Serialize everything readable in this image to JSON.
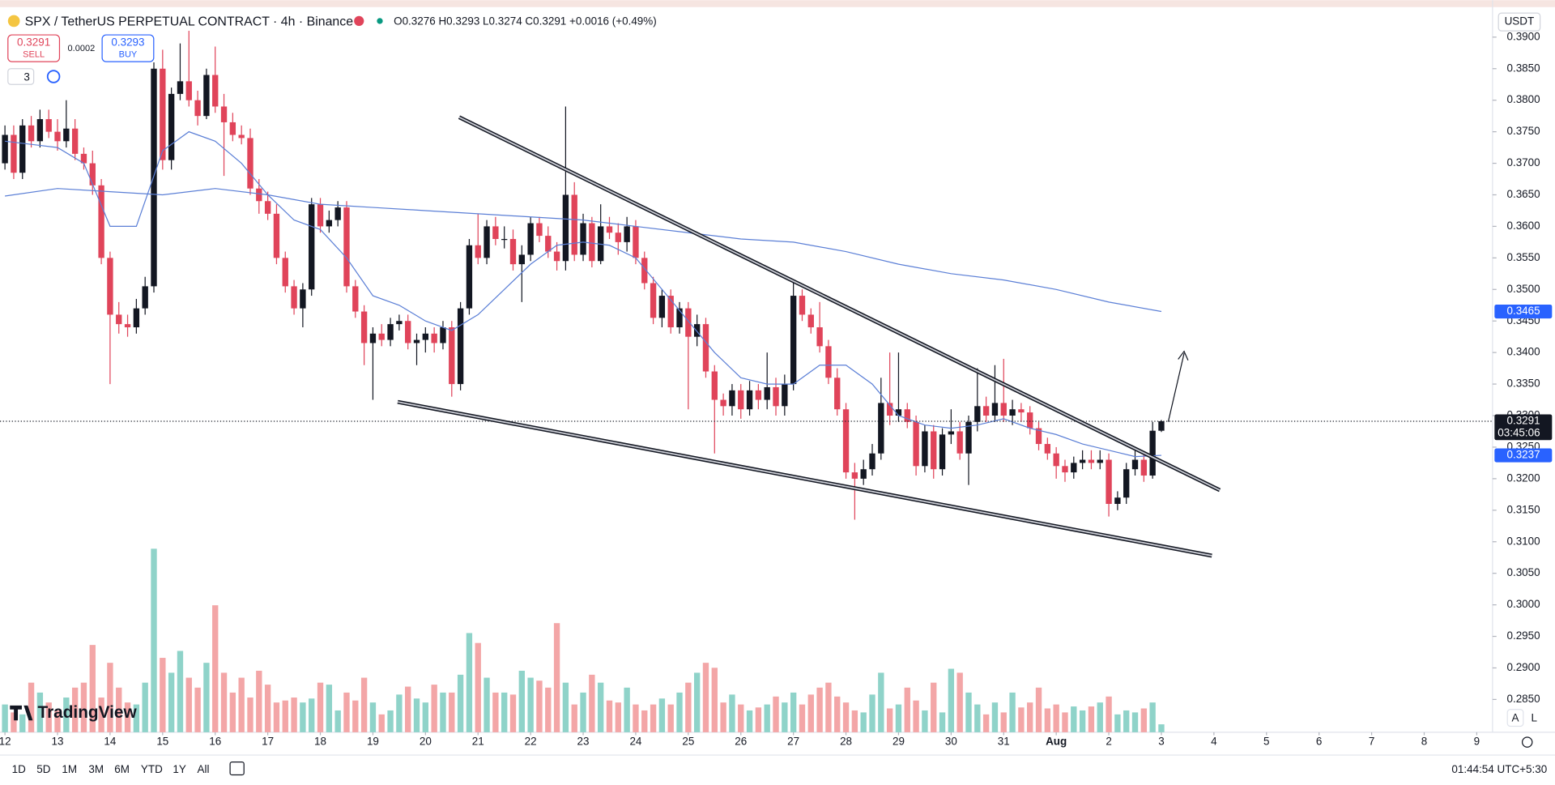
{
  "header": {
    "symbol": "SPX / TetherUS PERPETUAL CONTRACT · 4h · Binance",
    "ohlc": "O0.3276 H0.3293 L0.3274 C0.3291 +0.0016 (+0.49%)",
    "sell_price": "0.3291",
    "sell": "SELL",
    "spread": "0.0002",
    "buy_price": "0.3293",
    "buy": "BUY",
    "indicators": "3",
    "currency": "USDT"
  },
  "chart_data": {
    "type": "candlestick",
    "grid": false,
    "up_color": "#131722",
    "down_color": "#e0445a",
    "volume_up_color": "#8fd3c9",
    "volume_down_color": "#f3a6a7",
    "ma_color": "#5b7fd6",
    "xlim": [
      -2.26,
      679.2
    ],
    "ylim": [
      0.2798,
      0.3946
    ],
    "xticks": [
      {
        "value": 0,
        "label": "12"
      },
      {
        "value": 24,
        "label": "13"
      },
      {
        "value": 48,
        "label": "14"
      },
      {
        "value": 72,
        "label": "15"
      },
      {
        "value": 96,
        "label": "16"
      },
      {
        "value": 120,
        "label": "17"
      },
      {
        "value": 144,
        "label": "18"
      },
      {
        "value": 168,
        "label": "19"
      },
      {
        "value": 192,
        "label": "20"
      },
      {
        "value": 216,
        "label": "21"
      },
      {
        "value": 240,
        "label": "22"
      },
      {
        "value": 264,
        "label": "23"
      },
      {
        "value": 288,
        "label": "24"
      },
      {
        "value": 312,
        "label": "25"
      },
      {
        "value": 336,
        "label": "26"
      },
      {
        "value": 360,
        "label": "27"
      },
      {
        "value": 384,
        "label": "28"
      },
      {
        "value": 408,
        "label": "29"
      },
      {
        "value": 432,
        "label": "30"
      },
      {
        "value": 456,
        "label": "31"
      },
      {
        "value": 480,
        "label": "Aug"
      },
      {
        "value": 504,
        "label": "2"
      },
      {
        "value": 528,
        "label": "3"
      },
      {
        "value": 552,
        "label": "4"
      },
      {
        "value": 576,
        "label": "5"
      },
      {
        "value": 600,
        "label": "6"
      },
      {
        "value": 624,
        "label": "7"
      },
      {
        "value": 648,
        "label": "8"
      },
      {
        "value": 672,
        "label": "9"
      }
    ],
    "yticks": [
      {
        "value": 0.285,
        "label": "0.2850"
      },
      {
        "value": 0.29,
        "label": "0.2900"
      },
      {
        "value": 0.295,
        "label": "0.2950"
      },
      {
        "value": 0.3,
        "label": "0.3000"
      },
      {
        "value": 0.305,
        "label": "0.3050"
      },
      {
        "value": 0.31,
        "label": "0.3100"
      },
      {
        "value": 0.315,
        "label": "0.3150"
      },
      {
        "value": 0.32,
        "label": "0.3200"
      },
      {
        "value": 0.325,
        "label": "0.3250"
      },
      {
        "value": 0.33,
        "label": "0.3300"
      },
      {
        "value": 0.335,
        "label": "0.3350"
      },
      {
        "value": 0.34,
        "label": "0.3400"
      },
      {
        "value": 0.345,
        "label": "0.3450"
      },
      {
        "value": 0.35,
        "label": "0.3500"
      },
      {
        "value": 0.355,
        "label": "0.3550"
      },
      {
        "value": 0.36,
        "label": "0.3600"
      },
      {
        "value": 0.365,
        "label": "0.3650"
      },
      {
        "value": 0.37,
        "label": "0.3700"
      },
      {
        "value": 0.375,
        "label": "0.3750"
      },
      {
        "value": 0.38,
        "label": "0.3800"
      },
      {
        "value": 0.385,
        "label": "0.3850"
      },
      {
        "value": 0.39,
        "label": "0.3900"
      }
    ],
    "candles": {
      "x": [
        0,
        4,
        8,
        12,
        16,
        20,
        24,
        28,
        32,
        36,
        40,
        44,
        48,
        52,
        56,
        60,
        64,
        68,
        72,
        76,
        80,
        84,
        88,
        92,
        96,
        100,
        104,
        108,
        112,
        116,
        120,
        124,
        128,
        132,
        136,
        140,
        144,
        148,
        152,
        156,
        160,
        164,
        168,
        172,
        176,
        180,
        184,
        188,
        192,
        196,
        200,
        204,
        208,
        212,
        216,
        220,
        224,
        228,
        232,
        236,
        240,
        244,
        248,
        252,
        256,
        260,
        264,
        268,
        272,
        276,
        280,
        284,
        288,
        292,
        296,
        300,
        304,
        308,
        312,
        316,
        320,
        324,
        328,
        332,
        336,
        340,
        344,
        348,
        352,
        356,
        360,
        364,
        368,
        372,
        376,
        380,
        384,
        388,
        392,
        396,
        400,
        404,
        408,
        412,
        416,
        420,
        424,
        428,
        432,
        436,
        440,
        444,
        448,
        452,
        456,
        460,
        464,
        468,
        472,
        476,
        480,
        484,
        488,
        492,
        496,
        500,
        504,
        508,
        512,
        516,
        520,
        524,
        528
      ],
      "open": [
        0.37,
        0.3745,
        0.3685,
        0.376,
        0.3735,
        0.377,
        0.375,
        0.3735,
        0.3755,
        0.3715,
        0.37,
        0.3665,
        0.355,
        0.346,
        0.3445,
        0.344,
        0.347,
        0.3505,
        0.385,
        0.3705,
        0.381,
        0.383,
        0.38,
        0.3775,
        0.384,
        0.379,
        0.3765,
        0.3745,
        0.374,
        0.366,
        0.364,
        0.362,
        0.355,
        0.3505,
        0.347,
        0.35,
        0.3635,
        0.36,
        0.361,
        0.363,
        0.3505,
        0.3465,
        0.3415,
        0.343,
        0.342,
        0.3445,
        0.345,
        0.3415,
        0.342,
        0.343,
        0.3415,
        0.344,
        0.335,
        0.347,
        0.357,
        0.355,
        0.36,
        0.358,
        0.358,
        0.354,
        0.3555,
        0.3605,
        0.3585,
        0.356,
        0.3545,
        0.365,
        0.3555,
        0.3605,
        0.3545,
        0.36,
        0.359,
        0.3575,
        0.36,
        0.355,
        0.351,
        0.3455,
        0.349,
        0.344,
        0.347,
        0.3425,
        0.3445,
        0.337,
        0.3325,
        0.3315,
        0.334,
        0.331,
        0.334,
        0.3325,
        0.3345,
        0.3315,
        0.335,
        0.349,
        0.346,
        0.344,
        0.341,
        0.336,
        0.331,
        0.321,
        0.32,
        0.3215,
        0.324,
        0.332,
        0.33,
        0.331,
        0.329,
        0.322,
        0.3275,
        0.3215,
        0.327,
        0.3275,
        0.324,
        0.329,
        0.3315,
        0.33,
        0.332,
        0.33,
        0.331,
        0.3305,
        0.328,
        0.3255,
        0.324,
        0.322,
        0.321,
        0.3225,
        0.323,
        0.3225,
        0.323,
        0.316,
        0.317,
        0.3215,
        0.323,
        0.3205,
        0.3276
      ],
      "high": [
        0.376,
        0.376,
        0.377,
        0.3775,
        0.3785,
        0.3785,
        0.377,
        0.38,
        0.377,
        0.3725,
        0.372,
        0.3675,
        0.356,
        0.348,
        0.346,
        0.3485,
        0.352,
        0.386,
        0.388,
        0.382,
        0.389,
        0.391,
        0.3815,
        0.385,
        0.3885,
        0.381,
        0.378,
        0.376,
        0.3755,
        0.3675,
        0.3655,
        0.3635,
        0.356,
        0.3515,
        0.351,
        0.3645,
        0.3645,
        0.3625,
        0.364,
        0.364,
        0.3515,
        0.3475,
        0.344,
        0.3445,
        0.3455,
        0.346,
        0.346,
        0.343,
        0.344,
        0.344,
        0.345,
        0.345,
        0.348,
        0.358,
        0.362,
        0.361,
        0.3615,
        0.36,
        0.3595,
        0.357,
        0.3615,
        0.3615,
        0.36,
        0.3575,
        0.379,
        0.367,
        0.362,
        0.3615,
        0.3635,
        0.3615,
        0.3605,
        0.3615,
        0.361,
        0.356,
        0.352,
        0.35,
        0.35,
        0.348,
        0.348,
        0.346,
        0.3455,
        0.338,
        0.3335,
        0.335,
        0.335,
        0.3355,
        0.335,
        0.34,
        0.336,
        0.3365,
        0.351,
        0.35,
        0.347,
        0.348,
        0.342,
        0.3375,
        0.332,
        0.3225,
        0.323,
        0.3255,
        0.336,
        0.34,
        0.34,
        0.332,
        0.33,
        0.3285,
        0.3285,
        0.328,
        0.331,
        0.329,
        0.33,
        0.3375,
        0.333,
        0.338,
        0.339,
        0.3325,
        0.332,
        0.3315,
        0.329,
        0.3265,
        0.325,
        0.323,
        0.3235,
        0.3245,
        0.3245,
        0.3245,
        0.324,
        0.318,
        0.3225,
        0.3245,
        0.324,
        0.329,
        0.3293
      ],
      "low": [
        0.369,
        0.3675,
        0.3675,
        0.3725,
        0.3725,
        0.374,
        0.372,
        0.3725,
        0.3705,
        0.369,
        0.365,
        0.354,
        0.335,
        0.343,
        0.3425,
        0.343,
        0.346,
        0.3495,
        0.369,
        0.369,
        0.38,
        0.379,
        0.376,
        0.377,
        0.378,
        0.368,
        0.3735,
        0.373,
        0.365,
        0.362,
        0.361,
        0.354,
        0.3495,
        0.346,
        0.344,
        0.349,
        0.359,
        0.359,
        0.36,
        0.3495,
        0.3455,
        0.338,
        0.3325,
        0.341,
        0.341,
        0.3435,
        0.3405,
        0.338,
        0.34,
        0.34,
        0.3405,
        0.333,
        0.334,
        0.346,
        0.354,
        0.354,
        0.357,
        0.3565,
        0.353,
        0.348,
        0.3545,
        0.3575,
        0.355,
        0.353,
        0.353,
        0.3545,
        0.3545,
        0.3535,
        0.354,
        0.358,
        0.3555,
        0.356,
        0.354,
        0.35,
        0.3445,
        0.344,
        0.343,
        0.343,
        0.331,
        0.341,
        0.336,
        0.324,
        0.33,
        0.33,
        0.3295,
        0.33,
        0.331,
        0.331,
        0.33,
        0.33,
        0.334,
        0.345,
        0.343,
        0.34,
        0.335,
        0.33,
        0.32,
        0.3135,
        0.319,
        0.3205,
        0.323,
        0.3285,
        0.329,
        0.328,
        0.3205,
        0.321,
        0.32,
        0.3205,
        0.3255,
        0.323,
        0.319,
        0.3275,
        0.329,
        0.329,
        0.329,
        0.3285,
        0.329,
        0.327,
        0.3245,
        0.323,
        0.32,
        0.3195,
        0.32,
        0.3215,
        0.3215,
        0.3215,
        0.314,
        0.315,
        0.316,
        0.3205,
        0.3195,
        0.32,
        0.3274
      ],
      "close": [
        0.3745,
        0.3685,
        0.376,
        0.3735,
        0.377,
        0.375,
        0.3735,
        0.3755,
        0.3715,
        0.37,
        0.3665,
        0.355,
        0.346,
        0.3445,
        0.344,
        0.347,
        0.3505,
        0.385,
        0.3705,
        0.381,
        0.383,
        0.38,
        0.3775,
        0.384,
        0.379,
        0.3765,
        0.3745,
        0.374,
        0.366,
        0.364,
        0.362,
        0.355,
        0.3505,
        0.347,
        0.35,
        0.3635,
        0.36,
        0.361,
        0.363,
        0.3505,
        0.3465,
        0.3415,
        0.343,
        0.342,
        0.3445,
        0.345,
        0.3415,
        0.342,
        0.343,
        0.3415,
        0.344,
        0.335,
        0.347,
        0.357,
        0.355,
        0.36,
        0.358,
        0.358,
        0.354,
        0.3555,
        0.3605,
        0.3585,
        0.356,
        0.3545,
        0.365,
        0.3555,
        0.3605,
        0.3545,
        0.36,
        0.359,
        0.3575,
        0.36,
        0.355,
        0.351,
        0.3455,
        0.349,
        0.344,
        0.347,
        0.3425,
        0.3445,
        0.337,
        0.3325,
        0.3315,
        0.334,
        0.331,
        0.334,
        0.3325,
        0.3345,
        0.3315,
        0.335,
        0.349,
        0.346,
        0.344,
        0.341,
        0.336,
        0.331,
        0.321,
        0.32,
        0.3215,
        0.324,
        0.332,
        0.33,
        0.331,
        0.329,
        0.322,
        0.3275,
        0.3215,
        0.327,
        0.3275,
        0.324,
        0.329,
        0.3315,
        0.33,
        0.332,
        0.33,
        0.331,
        0.3305,
        0.328,
        0.3255,
        0.324,
        0.322,
        0.321,
        0.3225,
        0.323,
        0.3225,
        0.323,
        0.316,
        0.317,
        0.3215,
        0.323,
        0.3205,
        0.3276,
        0.3291
      ],
      "volume": [
        28,
        20,
        18,
        50,
        40,
        30,
        22,
        35,
        45,
        50,
        88,
        35,
        70,
        45,
        30,
        28,
        50,
        185,
        75,
        60,
        82,
        55,
        45,
        70,
        128,
        60,
        40,
        55,
        35,
        62,
        48,
        30,
        32,
        35,
        30,
        34,
        50,
        48,
        22,
        40,
        32,
        55,
        30,
        18,
        22,
        38,
        46,
        34,
        30,
        48,
        40,
        40,
        58,
        100,
        90,
        55,
        40,
        40,
        38,
        62,
        55,
        52,
        45,
        110,
        50,
        28,
        40,
        58,
        50,
        32,
        30,
        45,
        28,
        22,
        28,
        34,
        28,
        40,
        50,
        60,
        70,
        65,
        30,
        38,
        28,
        22,
        25,
        28,
        36,
        30,
        40,
        28,
        38,
        45,
        50,
        36,
        30,
        22,
        20,
        38,
        60,
        24,
        28,
        45,
        32,
        22,
        50,
        20,
        64,
        60,
        40,
        28,
        18,
        30,
        20,
        40,
        25,
        30,
        45,
        24,
        28,
        20,
        26,
        22,
        26,
        30,
        36,
        18,
        22,
        20,
        24,
        30,
        8
      ]
    },
    "ma_short": {
      "x": [
        0,
        12,
        24,
        36,
        48,
        60,
        72,
        84,
        96,
        108,
        120,
        132,
        144,
        156,
        168,
        180,
        192,
        204,
        216,
        228,
        240,
        252,
        264,
        276,
        288,
        300,
        312,
        324,
        336,
        348,
        360,
        372,
        384,
        396,
        408,
        420,
        432,
        444,
        456,
        468,
        480,
        492,
        504,
        516,
        528
      ],
      "values": [
        0.3735,
        0.373,
        0.3725,
        0.37,
        0.36,
        0.36,
        0.372,
        0.375,
        0.3735,
        0.37,
        0.365,
        0.361,
        0.3595,
        0.355,
        0.349,
        0.3475,
        0.345,
        0.3435,
        0.346,
        0.35,
        0.354,
        0.357,
        0.3575,
        0.357,
        0.355,
        0.35,
        0.345,
        0.34,
        0.336,
        0.335,
        0.335,
        0.338,
        0.338,
        0.335,
        0.33,
        0.3285,
        0.328,
        0.3285,
        0.3295,
        0.328,
        0.327,
        0.3255,
        0.3245,
        0.3235,
        0.3237
      ]
    },
    "ma_long": {
      "x": [
        0,
        24,
        48,
        72,
        96,
        120,
        144,
        168,
        192,
        216,
        240,
        264,
        288,
        312,
        336,
        360,
        384,
        408,
        432,
        456,
        480,
        504,
        528
      ],
      "values": [
        0.3648,
        0.366,
        0.3655,
        0.365,
        0.366,
        0.365,
        0.3635,
        0.363,
        0.3625,
        0.362,
        0.3615,
        0.361,
        0.36,
        0.359,
        0.358,
        0.3575,
        0.356,
        0.354,
        0.3525,
        0.3515,
        0.35,
        0.348,
        0.3465
      ]
    },
    "price_tags": [
      {
        "value": 0.3465,
        "color": "#2962ff"
      },
      {
        "value": 0.3291,
        "color": "#131722",
        "countdown": "03:45:06"
      },
      {
        "value": 0.3237,
        "color": "#2962ff"
      }
    ]
  },
  "watermark": "TradingView",
  "scale_buttons": [
    "A",
    "L"
  ],
  "toolbar": {
    "ranges": [
      "1D",
      "5D",
      "1M",
      "3M",
      "6M",
      "YTD",
      "1Y",
      "All"
    ],
    "clock": "01:44:54 UTC+5:30"
  }
}
